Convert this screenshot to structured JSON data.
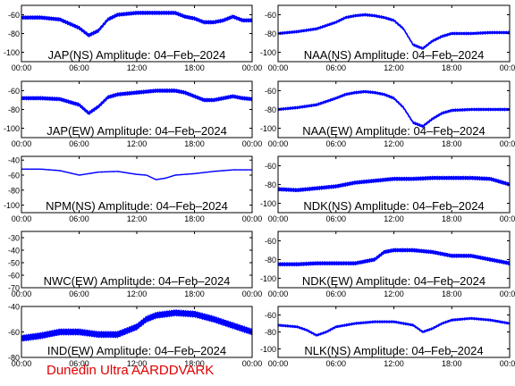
{
  "footer": {
    "text": "Dunedin Ultra AARDDVARK",
    "color": "#e00000"
  },
  "style": {
    "trace_color": "#0000ff",
    "axis_color": "#000000"
  },
  "x_ticks": [
    "00:00",
    "06:00",
    "12:00",
    "18:00",
    "00:00"
  ],
  "chart_data": [
    {
      "type": "line",
      "title": "JAP(NS) Amplitude: 04–Feb–2024",
      "x": [
        0,
        2,
        4,
        6,
        7,
        8,
        9,
        10,
        11,
        12,
        13,
        14,
        15,
        16,
        17,
        18,
        19,
        20,
        21,
        22,
        23,
        24
      ],
      "y": [
        -63,
        -63,
        -65,
        -74,
        -82,
        -77,
        -65,
        -60,
        -59,
        -58,
        -58,
        -58,
        -58,
        -58,
        -62,
        -64,
        -68,
        -68,
        -66,
        -62,
        -66,
        -66
      ],
      "band": 4,
      "ylim": [
        -110,
        -50
      ],
      "yticks": [
        -60,
        -80,
        -100
      ]
    },
    {
      "type": "line",
      "title": "NAA(NS) Amplitude: 04–Feb–2024",
      "x": [
        0,
        2,
        4,
        6,
        7,
        8,
        9,
        10,
        11,
        12,
        13,
        14,
        15,
        16,
        17,
        18,
        20,
        22,
        24
      ],
      "y": [
        -80,
        -78,
        -75,
        -68,
        -63,
        -61,
        -60,
        -61,
        -63,
        -66,
        -75,
        -92,
        -96,
        -88,
        -83,
        -80,
        -80,
        -79,
        -79
      ],
      "band": 3,
      "ylim": [
        -110,
        -50
      ],
      "yticks": [
        -60,
        -80,
        -100
      ]
    },
    {
      "type": "line",
      "title": "JAP(EW) Amplitude: 04–Feb–2024",
      "x": [
        0,
        2,
        4,
        6,
        7,
        8,
        9,
        10,
        11,
        12,
        13,
        14,
        15,
        16,
        17,
        18,
        19,
        20,
        21,
        22,
        23,
        24
      ],
      "y": [
        -68,
        -68,
        -69,
        -75,
        -84,
        -77,
        -67,
        -64,
        -63,
        -62,
        -61,
        -60,
        -60,
        -60,
        -62,
        -66,
        -70,
        -70,
        -68,
        -66,
        -68,
        -69
      ],
      "band": 4,
      "ylim": [
        -110,
        -50
      ],
      "yticks": [
        -60,
        -80,
        -100
      ]
    },
    {
      "type": "line",
      "title": "NAA(EW) Amplitude: 04–Feb–2024",
      "x": [
        0,
        2,
        4,
        6,
        7,
        8,
        9,
        10,
        11,
        12,
        13,
        14,
        15,
        16,
        17,
        18,
        20,
        22,
        24
      ],
      "y": [
        -80,
        -78,
        -75,
        -68,
        -64,
        -62,
        -61,
        -62,
        -64,
        -68,
        -78,
        -94,
        -98,
        -90,
        -84,
        -81,
        -80,
        -80,
        -80
      ],
      "band": 3,
      "ylim": [
        -110,
        -50
      ],
      "yticks": [
        -60,
        -80,
        -100
      ]
    },
    {
      "type": "line",
      "title": "NPM(NS) Amplitude: 04–Feb–2024",
      "x": [
        0,
        2,
        4,
        6,
        8,
        10,
        12,
        13,
        14,
        15,
        16,
        18,
        20,
        22,
        24
      ],
      "y": [
        -52,
        -52,
        -54,
        -60,
        -56,
        -55,
        -59,
        -60,
        -66,
        -64,
        -60,
        -58,
        -55,
        -53,
        -53
      ],
      "band": 1,
      "ylim": [
        -110,
        -35
      ],
      "yticks": [
        -40,
        -60,
        -80,
        -100
      ]
    },
    {
      "type": "line",
      "title": "NDK(NS) Amplitude: 04–Feb–2024",
      "x": [
        0,
        2,
        4,
        6,
        8,
        10,
        12,
        14,
        16,
        18,
        20,
        22,
        24
      ],
      "y": [
        -85,
        -86,
        -84,
        -82,
        -78,
        -76,
        -74,
        -74,
        -73,
        -73,
        -73,
        -74,
        -80
      ],
      "band": 4,
      "ylim": [
        -110,
        -50
      ],
      "yticks": [
        -60,
        -80,
        -100
      ]
    },
    {
      "type": "line",
      "title": "NWC(EW) Amplitude: 04–Feb–2024",
      "x": [],
      "y": [],
      "band": 0,
      "ylim": [
        -70,
        -25
      ],
      "yticks": [
        -30,
        -40,
        -50,
        -60,
        -70
      ]
    },
    {
      "type": "line",
      "title": "NDK(EW) Amplitude: 04–Feb–2024",
      "x": [
        0,
        2,
        4,
        6,
        8,
        10,
        11,
        12,
        14,
        16,
        17,
        18,
        20,
        22,
        24
      ],
      "y": [
        -85,
        -85,
        -84,
        -84,
        -84,
        -80,
        -72,
        -70,
        -70,
        -72,
        -74,
        -76,
        -76,
        -80,
        -84
      ],
      "band": 4,
      "ylim": [
        -110,
        -50
      ],
      "yticks": [
        -60,
        -80,
        -100
      ]
    },
    {
      "type": "line",
      "title": "IND(EW) Amplitude: 04–Feb–2024",
      "x": [
        0,
        2,
        4,
        6,
        8,
        10,
        12,
        13,
        14,
        16,
        18,
        20,
        22,
        24
      ],
      "y": [
        -65,
        -63,
        -60,
        -60,
        -62,
        -62,
        -56,
        -50,
        -47,
        -45,
        -46,
        -50,
        -55,
        -60
      ],
      "band": 5,
      "ylim": [
        -80,
        -40
      ],
      "yticks": [
        -40,
        -60,
        -80
      ]
    },
    {
      "type": "line",
      "title": "NLK(NS) Amplitude: 04–Feb–2024",
      "x": [
        0,
        2,
        3,
        4,
        5,
        6,
        8,
        10,
        12,
        14,
        15,
        16,
        17,
        18,
        20,
        22,
        24
      ],
      "y": [
        -72,
        -74,
        -78,
        -84,
        -80,
        -74,
        -70,
        -68,
        -68,
        -72,
        -80,
        -76,
        -70,
        -66,
        -64,
        -66,
        -70
      ],
      "band": 3,
      "ylim": [
        -110,
        -50
      ],
      "yticks": [
        -60,
        -80,
        -100
      ]
    }
  ]
}
